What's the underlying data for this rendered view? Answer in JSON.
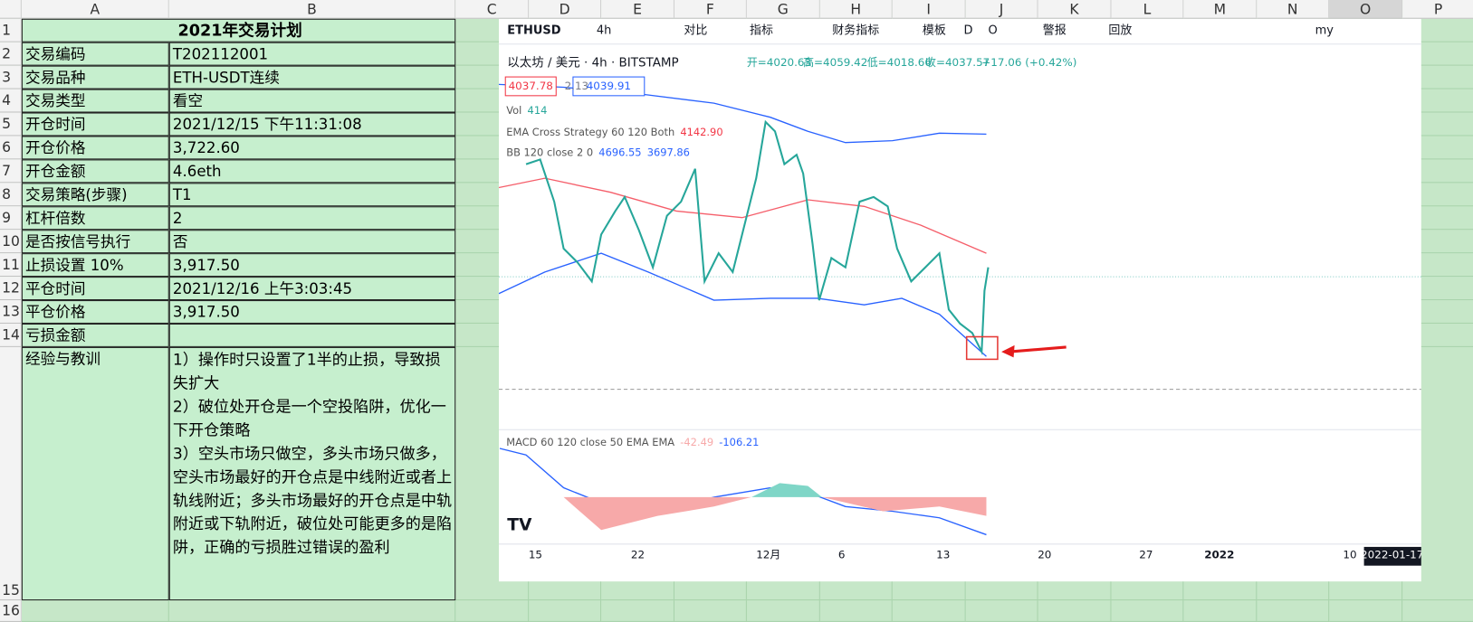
{
  "columns": [
    "A",
    "B",
    "C",
    "D",
    "E",
    "F",
    "G",
    "H",
    "I",
    "J",
    "K",
    "L",
    "M",
    "N",
    "O",
    "P"
  ],
  "row_numbers": [
    1,
    2,
    3,
    4,
    5,
    6,
    7,
    8,
    9,
    10,
    11,
    12,
    13,
    14,
    15,
    16
  ],
  "sheet": {
    "title": "2021年交易计划",
    "rows": [
      [
        "交易编码",
        "T202112001"
      ],
      [
        "交易品种",
        "ETH-USDT连续"
      ],
      [
        "交易类型",
        "看空"
      ],
      [
        "开仓时间",
        "2021/12/15 下午11:31:08"
      ],
      [
        "开仓价格",
        "3,722.60"
      ],
      [
        "开仓金额",
        "4.6eth"
      ],
      [
        "交易策略(步骤)",
        "T1"
      ],
      [
        "杠杆倍数",
        "2"
      ],
      [
        "是否按信号执行",
        "否"
      ],
      [
        "止损设置 10%",
        "3,917.50"
      ],
      [
        "平仓时间",
        "2021/12/16 上午3:03:45"
      ],
      [
        "平仓价格",
        "3,917.50"
      ],
      [
        "亏损金额"
      ]
    ],
    "lessons": {
      "label": "经验与教训",
      "paragraphs": [
        "1）操作时只设置了1半的止损，导致损失扩大",
        "2）破位处开仓是一个空投陷阱，优化一下开仓策略",
        "3）空头市场只做空，多头市场只做多，空头市场最好的开仓点是中线附近或者上轨线附近；多头市场最好的开仓点是中轨附近或下轨附近，破位处可能更多的是陷阱，正确的亏损胜过错误的盈利"
      ]
    }
  },
  "chart_image": {
    "toolbar": [
      "ETHUSD",
      "4h",
      "对比",
      "指标",
      "财务指标",
      "模板",
      "D",
      "O",
      "警报",
      "回放",
      "my"
    ],
    "symbol": "以太坊 / 美元 · 4h · BITSTAMP",
    "ohlc": [
      "开=4020.63",
      "高=4059.42",
      "低=4018.66",
      "收=4037.57",
      "+17.06 (+0.42%)"
    ],
    "price_tags": [
      "4037.78",
      "2.13",
      "4039.91"
    ],
    "indicators": [
      {
        "name": "Vol",
        "values": [
          "414"
        ]
      },
      {
        "name": "EMA Cross Strategy 60 120 Both",
        "values": [
          "4142.90"
        ]
      },
      {
        "name": "BB 120 close 2 0",
        "values": [
          "4696.55",
          "3697.86"
        ]
      },
      {
        "name": "MACD 60 120 close 50 EMA EMA",
        "values": [
          "-42.49",
          "-106.21"
        ]
      }
    ],
    "x_labels": [
      "15",
      "22",
      "12月",
      "6",
      "13",
      "20",
      "27",
      "2022",
      "10",
      "2022-01-17"
    ]
  }
}
